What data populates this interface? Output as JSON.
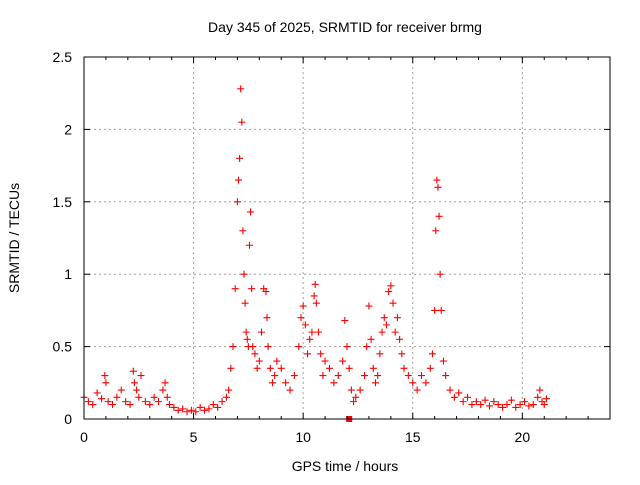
{
  "chart_data": {
    "type": "scatter",
    "title": "Day 345 of 2025, SRMTID for receiver brmg",
    "xlabel": "GPS time / hours",
    "ylabel": "SRMTID / TECUs",
    "xlim": [
      0,
      24
    ],
    "ylim": [
      0,
      2.5
    ],
    "xticks": [
      0,
      5,
      10,
      15,
      20
    ],
    "xtick_labels": [
      "0",
      "5",
      "10",
      "15",
      "20"
    ],
    "yticks": [
      0,
      0.5,
      1,
      1.5,
      2,
      2.5
    ],
    "ytick_labels": [
      "0",
      "0.5",
      "1",
      "1.5",
      "2",
      "2.5"
    ],
    "grid": true,
    "marker": "+",
    "marker_color": "#ff0000",
    "series": [
      {
        "name": "SRMTID",
        "x": [
          0.0,
          0.2,
          0.4,
          0.6,
          0.8,
          0.95,
          1.0,
          1.1,
          1.3,
          1.5,
          1.7,
          1.9,
          2.1,
          2.25,
          2.3,
          2.4,
          2.5,
          2.6,
          2.8,
          3.0,
          3.2,
          3.4,
          3.6,
          3.7,
          3.8,
          3.9,
          4.1,
          4.3,
          4.5,
          4.7,
          4.9,
          5.1,
          5.3,
          5.5,
          5.7,
          5.9,
          6.1,
          6.3,
          6.5,
          6.6,
          6.7,
          6.8,
          6.9,
          7.0,
          7.05,
          7.1,
          7.15,
          7.2,
          7.25,
          7.3,
          7.35,
          7.4,
          7.45,
          7.5,
          7.55,
          7.6,
          7.65,
          7.7,
          7.8,
          7.9,
          8.0,
          8.1,
          8.2,
          8.3,
          8.35,
          8.4,
          8.5,
          8.6,
          8.7,
          8.8,
          9.0,
          9.2,
          9.4,
          9.6,
          9.8,
          9.9,
          10.0,
          10.1,
          10.2,
          10.3,
          10.4,
          10.5,
          10.55,
          10.6,
          10.7,
          10.8,
          10.9,
          11.0,
          11.2,
          11.4,
          11.6,
          11.8,
          11.9,
          12.0,
          12.1,
          12.2,
          12.3,
          12.4,
          12.6,
          12.8,
          12.9,
          13.0,
          13.1,
          13.2,
          13.3,
          13.4,
          13.5,
          13.6,
          13.7,
          13.8,
          13.9,
          14.0,
          14.1,
          14.2,
          14.3,
          14.4,
          14.5,
          14.6,
          14.8,
          15.0,
          15.2,
          15.4,
          15.6,
          15.8,
          15.9,
          16.0,
          16.05,
          16.1,
          16.15,
          16.2,
          16.25,
          16.3,
          16.4,
          16.5,
          16.7,
          16.9,
          17.1,
          17.3,
          17.5,
          17.7,
          17.9,
          18.1,
          18.3,
          18.5,
          18.7,
          18.9,
          19.1,
          19.3,
          19.5,
          19.7,
          19.9,
          20.1,
          20.3,
          20.5,
          20.7,
          20.8,
          20.9,
          21.0,
          21.1
        ],
        "y": [
          0.15,
          0.12,
          0.1,
          0.18,
          0.14,
          0.3,
          0.25,
          0.12,
          0.1,
          0.15,
          0.2,
          0.12,
          0.1,
          0.33,
          0.25,
          0.2,
          0.15,
          0.3,
          0.12,
          0.1,
          0.15,
          0.12,
          0.2,
          0.25,
          0.15,
          0.1,
          0.08,
          0.06,
          0.07,
          0.05,
          0.06,
          0.05,
          0.08,
          0.06,
          0.07,
          0.1,
          0.08,
          0.12,
          0.15,
          0.2,
          0.35,
          0.5,
          0.9,
          1.5,
          1.65,
          1.8,
          2.28,
          2.05,
          1.3,
          1.0,
          0.8,
          0.6,
          0.55,
          0.5,
          1.2,
          1.43,
          0.9,
          0.5,
          0.45,
          0.35,
          0.4,
          0.6,
          0.9,
          0.88,
          0.7,
          0.5,
          0.35,
          0.25,
          0.3,
          0.4,
          0.35,
          0.25,
          0.2,
          0.3,
          0.5,
          0.7,
          0.78,
          0.65,
          0.45,
          0.55,
          0.6,
          0.85,
          0.93,
          0.8,
          0.6,
          0.45,
          0.3,
          0.4,
          0.35,
          0.25,
          0.3,
          0.4,
          0.68,
          0.5,
          0.35,
          0.2,
          0.12,
          0.15,
          0.2,
          0.3,
          0.5,
          0.78,
          0.55,
          0.35,
          0.25,
          0.3,
          0.45,
          0.6,
          0.7,
          0.65,
          0.88,
          0.92,
          0.8,
          0.6,
          0.7,
          0.55,
          0.45,
          0.35,
          0.3,
          0.25,
          0.2,
          0.3,
          0.25,
          0.35,
          0.45,
          0.75,
          1.3,
          1.65,
          1.6,
          1.4,
          1.0,
          0.75,
          0.4,
          0.3,
          0.2,
          0.15,
          0.18,
          0.12,
          0.15,
          0.1,
          0.12,
          0.1,
          0.13,
          0.09,
          0.12,
          0.1,
          0.08,
          0.1,
          0.13,
          0.08,
          0.1,
          0.12,
          0.09,
          0.1,
          0.15,
          0.2,
          0.12,
          0.1,
          0.14
        ],
        "outliers": [
          {
            "x": 12.1,
            "y": 0.0
          }
        ]
      }
    ]
  }
}
